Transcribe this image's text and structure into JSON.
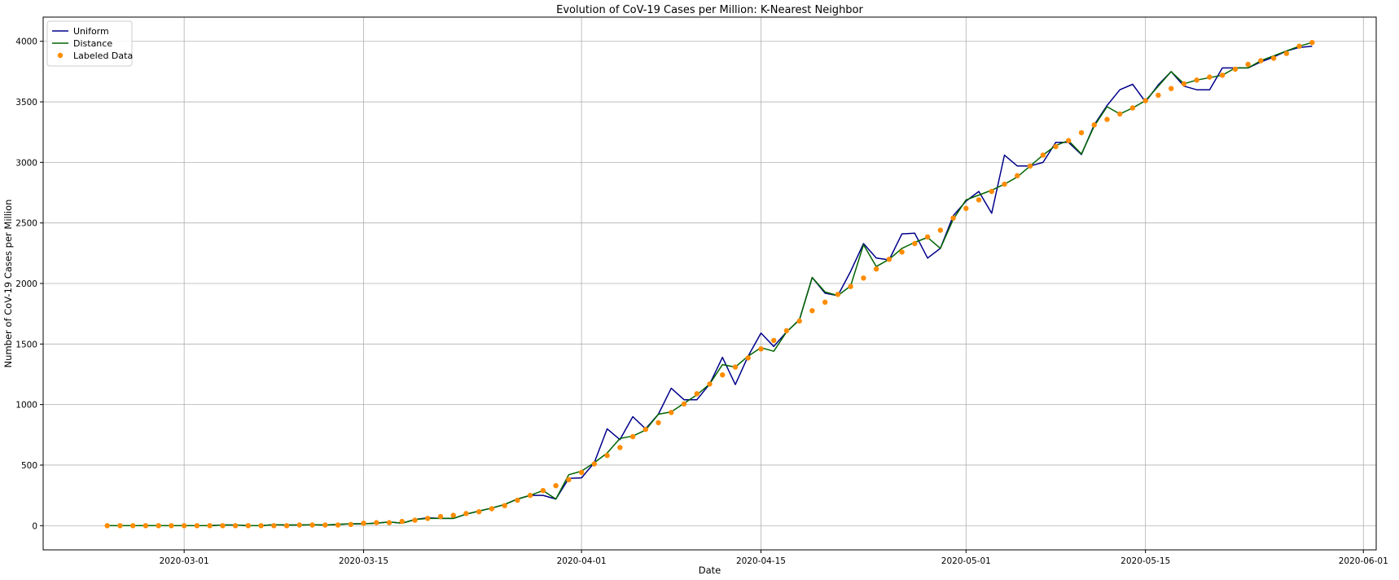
{
  "chart_data": {
    "type": "line",
    "title": "Evolution of CoV-19 Cases per Million: K-Nearest Neighbor",
    "xlabel": "Date",
    "ylabel": "Number of CoV-19 Cases per Million",
    "x_axis_type": "date",
    "xlim": [
      "2020-02-19",
      "2020-06-02"
    ],
    "ylim": [
      -200,
      4200
    ],
    "x_ticks": [
      "2020-03-01",
      "2020-03-15",
      "2020-04-01",
      "2020-04-15",
      "2020-05-01",
      "2020-05-15",
      "2020-06-01"
    ],
    "x_tick_labels": [
      "2020-03-01",
      "2020-03-15",
      "2020-04-01",
      "2020-04-15",
      "2020-05-01",
      "2020-05-15",
      "2020-06-01"
    ],
    "y_ticks": [
      0,
      500,
      1000,
      1500,
      2000,
      2500,
      3000,
      3500,
      4000
    ],
    "y_tick_labels": [
      "0",
      "500",
      "1000",
      "1500",
      "2000",
      "2500",
      "3000",
      "3500",
      "4000"
    ],
    "grid": true,
    "legend_position": "upper-left",
    "x": [
      "2020-02-24",
      "2020-02-25",
      "2020-02-26",
      "2020-02-27",
      "2020-02-28",
      "2020-02-29",
      "2020-03-01",
      "2020-03-02",
      "2020-03-03",
      "2020-03-04",
      "2020-03-05",
      "2020-03-06",
      "2020-03-07",
      "2020-03-08",
      "2020-03-09",
      "2020-03-10",
      "2020-03-11",
      "2020-03-12",
      "2020-03-13",
      "2020-03-14",
      "2020-03-15",
      "2020-03-16",
      "2020-03-17",
      "2020-03-18",
      "2020-03-19",
      "2020-03-20",
      "2020-03-21",
      "2020-03-22",
      "2020-03-23",
      "2020-03-24",
      "2020-03-25",
      "2020-03-26",
      "2020-03-27",
      "2020-03-28",
      "2020-03-29",
      "2020-03-30",
      "2020-03-31",
      "2020-04-01",
      "2020-04-02",
      "2020-04-03",
      "2020-04-04",
      "2020-04-05",
      "2020-04-06",
      "2020-04-07",
      "2020-04-08",
      "2020-04-09",
      "2020-04-10",
      "2020-04-11",
      "2020-04-12",
      "2020-04-13",
      "2020-04-14",
      "2020-04-15",
      "2020-04-16",
      "2020-04-17",
      "2020-04-18",
      "2020-04-19",
      "2020-04-20",
      "2020-04-21",
      "2020-04-22",
      "2020-04-23",
      "2020-04-24",
      "2020-04-25",
      "2020-04-26",
      "2020-04-27",
      "2020-04-28",
      "2020-04-29",
      "2020-04-30",
      "2020-05-01",
      "2020-05-02",
      "2020-05-03",
      "2020-05-04",
      "2020-05-05",
      "2020-05-06",
      "2020-05-07",
      "2020-05-08",
      "2020-05-09",
      "2020-05-10",
      "2020-05-11",
      "2020-05-12",
      "2020-05-13",
      "2020-05-14",
      "2020-05-15",
      "2020-05-16",
      "2020-05-17",
      "2020-05-18",
      "2020-05-19",
      "2020-05-20",
      "2020-05-21",
      "2020-05-22",
      "2020-05-23",
      "2020-05-24",
      "2020-05-25",
      "2020-05-26",
      "2020-05-27",
      "2020-05-28"
    ],
    "series": [
      {
        "name": "Uniform",
        "kind": "line",
        "color": "#00008b",
        "values": [
          0,
          0,
          0,
          0,
          0,
          0,
          0,
          0,
          0,
          5,
          5,
          0,
          0,
          8,
          5,
          5,
          8,
          5,
          10,
          15,
          15,
          20,
          30,
          20,
          50,
          65,
          60,
          60,
          95,
          120,
          145,
          175,
          220,
          250,
          250,
          220,
          390,
          395,
          520,
          800,
          710,
          900,
          800,
          920,
          1135,
          1040,
          1040,
          1170,
          1390,
          1165,
          1400,
          1590,
          1480,
          1600,
          1700,
          2050,
          1920,
          1900,
          2100,
          2330,
          2210,
          2195,
          2410,
          2415,
          2210,
          2290,
          2560,
          2680,
          2760,
          2580,
          3060,
          2970,
          2970,
          3000,
          3165,
          3165,
          3065,
          3310,
          3470,
          3600,
          3645,
          3500,
          3640,
          3750,
          3630,
          3600,
          3600,
          3780,
          3780,
          3780,
          3830,
          3870,
          3920,
          3950,
          3960
        ]
      },
      {
        "name": "Distance",
        "kind": "line",
        "color": "#006400",
        "values": [
          0,
          0,
          0,
          0,
          0,
          0,
          0,
          0,
          0,
          5,
          5,
          0,
          0,
          8,
          5,
          5,
          8,
          5,
          10,
          15,
          15,
          20,
          30,
          20,
          50,
          60,
          60,
          60,
          95,
          120,
          145,
          175,
          220,
          250,
          290,
          220,
          420,
          450,
          520,
          600,
          720,
          740,
          790,
          920,
          940,
          1010,
          1080,
          1170,
          1330,
          1310,
          1400,
          1470,
          1440,
          1600,
          1700,
          2050,
          1930,
          1900,
          1980,
          2320,
          2140,
          2200,
          2290,
          2340,
          2380,
          2290,
          2530,
          2690,
          2730,
          2770,
          2820,
          2880,
          2970,
          3060,
          3140,
          3180,
          3070,
          3300,
          3460,
          3400,
          3450,
          3510,
          3630,
          3750,
          3650,
          3680,
          3700,
          3720,
          3780,
          3780,
          3840,
          3880,
          3920,
          3960,
          3990
        ]
      },
      {
        "name": "Labeled Data",
        "kind": "scatter",
        "color": "#ff8c00",
        "values": [
          0,
          0,
          0,
          0,
          0,
          0,
          0,
          0,
          0,
          0,
          0,
          0,
          0,
          0,
          0,
          5,
          5,
          5,
          5,
          10,
          20,
          25,
          25,
          35,
          45,
          60,
          75,
          85,
          100,
          115,
          140,
          165,
          210,
          250,
          290,
          330,
          380,
          440,
          510,
          580,
          645,
          735,
          795,
          850,
          935,
          1005,
          1090,
          1170,
          1245,
          1310,
          1385,
          1460,
          1530,
          1610,
          1690,
          1775,
          1845,
          1910,
          1975,
          2045,
          2120,
          2200,
          2260,
          2330,
          2385,
          2440,
          2540,
          2620,
          2690,
          2760,
          2820,
          2890,
          2970,
          3060,
          3130,
          3180,
          3245,
          3310,
          3355,
          3400,
          3450,
          3510,
          3555,
          3610,
          3650,
          3680,
          3705,
          3720,
          3770,
          3810,
          3840,
          3860,
          3900,
          3960,
          3990
        ]
      }
    ]
  }
}
